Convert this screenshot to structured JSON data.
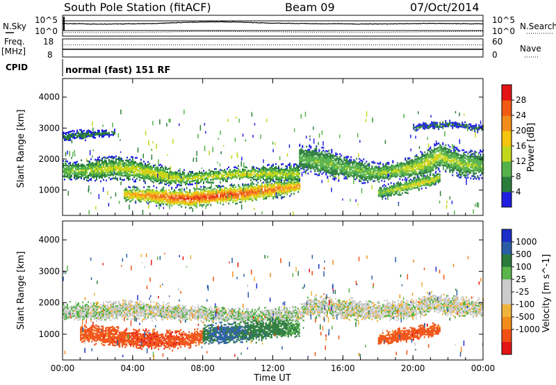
{
  "header": {
    "title": "South Pole Station (fitACF)",
    "beam": "Beam 09",
    "date": "07/Oct/2014"
  },
  "colors": {
    "power": [
      "#1f1fe0",
      "#2a7d3c",
      "#55b24a",
      "#c2d71c",
      "#f5c40c",
      "#f08c1a",
      "#f05a14",
      "#e41414"
    ],
    "velocity": [
      "#1c2fc7",
      "#2a5da6",
      "#2a7a3c",
      "#5ab54a",
      "#cccccc",
      "#cccccc",
      "#f0b43c",
      "#f08c1a",
      "#f05014",
      "#e41414"
    ]
  },
  "chart_data": [
    {
      "type": "line",
      "panel": "noise",
      "left_label": "N.Sky",
      "right_label": "N.Search",
      "left_ticks": [
        "10^5",
        "10^0"
      ],
      "right_ticks": [
        "10^5",
        "10^0"
      ],
      "x_hours": [
        0,
        1,
        2,
        3,
        4,
        5,
        6,
        7,
        8,
        9,
        10,
        11,
        12,
        13,
        14,
        15,
        16,
        17,
        18,
        19,
        20,
        21,
        22,
        23,
        24
      ],
      "n_sky_log": [
        3.6,
        3.5,
        3.3,
        3.4,
        3.5,
        3.6,
        3.9,
        4.2,
        4.4,
        4.5,
        4.4,
        4.0,
        3.8,
        3.7,
        3.6,
        3.5,
        3.5,
        3.4,
        3.4,
        3.5,
        3.6,
        3.7,
        3.6,
        3.5,
        3.5
      ],
      "n_search_log": [
        1.2,
        1.2,
        1.1,
        1.2,
        1.2,
        1.3,
        1.4,
        1.6,
        1.7,
        1.7,
        1.6,
        1.5,
        1.5,
        1.4,
        1.3,
        1.3,
        1.3,
        1.2,
        1.2,
        1.3,
        1.4,
        1.5,
        1.6,
        1.7,
        1.8
      ]
    },
    {
      "type": "line",
      "panel": "frequency",
      "left_label": "Freq.",
      "left_unit": "[MHz]",
      "right_label": "Nave",
      "left_ticks": [
        "18",
        "8"
      ],
      "right_ticks": [
        "60",
        "0"
      ],
      "freq_mhz": 12.3,
      "nave": 40
    },
    {
      "type": "table",
      "panel": "cpid",
      "label": "CPID",
      "mode_text": "normal (fast) 151 RF"
    },
    {
      "type": "heatmap",
      "panel": "power",
      "ylabel": "Slant Range [km]",
      "yticks": [
        1000,
        2000,
        3000,
        4000
      ],
      "ylim": [
        180,
        4600
      ],
      "colorbar_label": "Power [dB]",
      "colorbar_ticks": [
        4,
        8,
        12,
        16,
        20,
        24,
        28
      ],
      "crange": [
        0,
        32
      ],
      "bands": [
        {
          "hours": [
            0,
            1,
            2,
            3,
            4,
            5,
            6,
            7,
            8,
            9,
            10,
            11,
            12,
            13.5
          ],
          "center_km": [
            1600,
            1600,
            1650,
            1700,
            1650,
            1550,
            1400,
            1350,
            1400,
            1450,
            1500,
            1500,
            1500,
            1500
          ],
          "half_width_km": [
            200,
            200,
            250,
            250,
            250,
            200,
            200,
            150,
            150,
            150,
            150,
            150,
            200,
            200
          ],
          "power_db": [
            12,
            13,
            14,
            15,
            16,
            17,
            16,
            15,
            15,
            16,
            17,
            16,
            15,
            14
          ]
        },
        {
          "hours": [
            3.5,
            5,
            6,
            7,
            8,
            9,
            10,
            11,
            12,
            13.5
          ],
          "center_km": [
            850,
            800,
            760,
            700,
            750,
            800,
            850,
            920,
            1000,
            1100
          ],
          "half_width_km": [
            150,
            180,
            200,
            200,
            200,
            200,
            200,
            200,
            200,
            150
          ],
          "power_db": [
            20,
            24,
            27,
            29,
            29,
            29,
            28,
            26,
            25,
            22
          ]
        },
        {
          "hours": [
            13.5,
            14,
            15,
            16,
            17,
            18,
            19,
            20,
            21,
            21.5,
            22,
            23,
            24
          ],
          "center_km": [
            2000,
            1950,
            1850,
            1700,
            1600,
            1550,
            1600,
            1700,
            1900,
            2100,
            1950,
            1800,
            1750
          ],
          "half_width_km": [
            300,
            300,
            300,
            250,
            250,
            200,
            200,
            250,
            300,
            300,
            300,
            300,
            300
          ],
          "power_db": [
            10,
            11,
            12,
            12,
            12,
            13,
            14,
            15,
            16,
            15,
            14,
            13,
            12
          ]
        },
        {
          "hours": [
            18,
            19,
            20,
            21,
            21.5
          ],
          "center_km": [
            900,
            1000,
            1150,
            1300,
            1400
          ],
          "half_width_km": [
            120,
            150,
            150,
            150,
            120
          ],
          "power_db": [
            14,
            15,
            16,
            16,
            14
          ]
        },
        {
          "hours": [
            0,
            1,
            2,
            3
          ],
          "center_km": [
            2700,
            2750,
            2800,
            2850
          ],
          "half_width_km": [
            100,
            100,
            80,
            60
          ],
          "power_db": [
            6,
            6,
            6,
            6
          ]
        },
        {
          "hours": [
            20,
            21,
            22,
            23,
            24
          ],
          "center_km": [
            3000,
            3050,
            3100,
            3050,
            2950
          ],
          "half_width_km": [
            80,
            80,
            80,
            80,
            80
          ],
          "power_db": [
            5,
            5,
            6,
            5,
            5
          ]
        }
      ]
    },
    {
      "type": "heatmap",
      "panel": "velocity",
      "ylabel": "Slant Range [km]",
      "yticks": [
        1000,
        2000,
        3000,
        4000
      ],
      "ylim": [
        180,
        4600
      ],
      "colorbar_label": "Velocity [m s^-1]",
      "colorbar_ticks": [
        "1000",
        "500",
        "100",
        "25",
        "-25",
        "-100",
        "-500",
        "-1000"
      ],
      "bands": [
        {
          "hours": [
            0,
            2,
            4,
            6,
            8,
            10,
            12,
            13.5,
            14,
            16,
            18,
            20,
            21,
            22,
            24
          ],
          "center_km": [
            1700,
            1700,
            1750,
            1700,
            1600,
            1550,
            1550,
            1600,
            1900,
            1800,
            1700,
            1750,
            2000,
            1900,
            1800
          ],
          "half_width_km": [
            180,
            200,
            200,
            180,
            160,
            160,
            180,
            180,
            220,
            220,
            200,
            200,
            220,
            220,
            200
          ],
          "velocity_ms": [
            20,
            10,
            0,
            0,
            10,
            20,
            20,
            10,
            0,
            0,
            0,
            0,
            0,
            0,
            0
          ]
        },
        {
          "hours": [
            1,
            3,
            5,
            7,
            8
          ],
          "center_km": [
            1000,
            900,
            800,
            800,
            900
          ],
          "half_width_km": [
            180,
            200,
            200,
            180,
            150
          ],
          "velocity_ms": [
            -300,
            -400,
            -450,
            -400,
            -300
          ]
        },
        {
          "hours": [
            8,
            9,
            10,
            11,
            12,
            13.5
          ],
          "center_km": [
            950,
            1000,
            1050,
            1100,
            1150,
            1150
          ],
          "half_width_km": [
            200,
            220,
            220,
            220,
            200,
            180
          ],
          "velocity_ms": [
            200,
            300,
            250,
            200,
            150,
            100
          ]
        },
        {
          "hours": [
            18,
            19,
            20,
            21,
            21.5
          ],
          "center_km": [
            800,
            900,
            1000,
            1100,
            1150
          ],
          "half_width_km": [
            120,
            140,
            150,
            150,
            120
          ],
          "velocity_ms": [
            -300,
            -350,
            -400,
            -350,
            -300
          ]
        }
      ]
    }
  ],
  "xaxis": {
    "ticks": [
      "00:00",
      "04:00",
      "08:00",
      "12:00",
      "16:00",
      "20:00",
      "00:00"
    ],
    "label": "Time UT",
    "range_hours": [
      0,
      24
    ]
  }
}
